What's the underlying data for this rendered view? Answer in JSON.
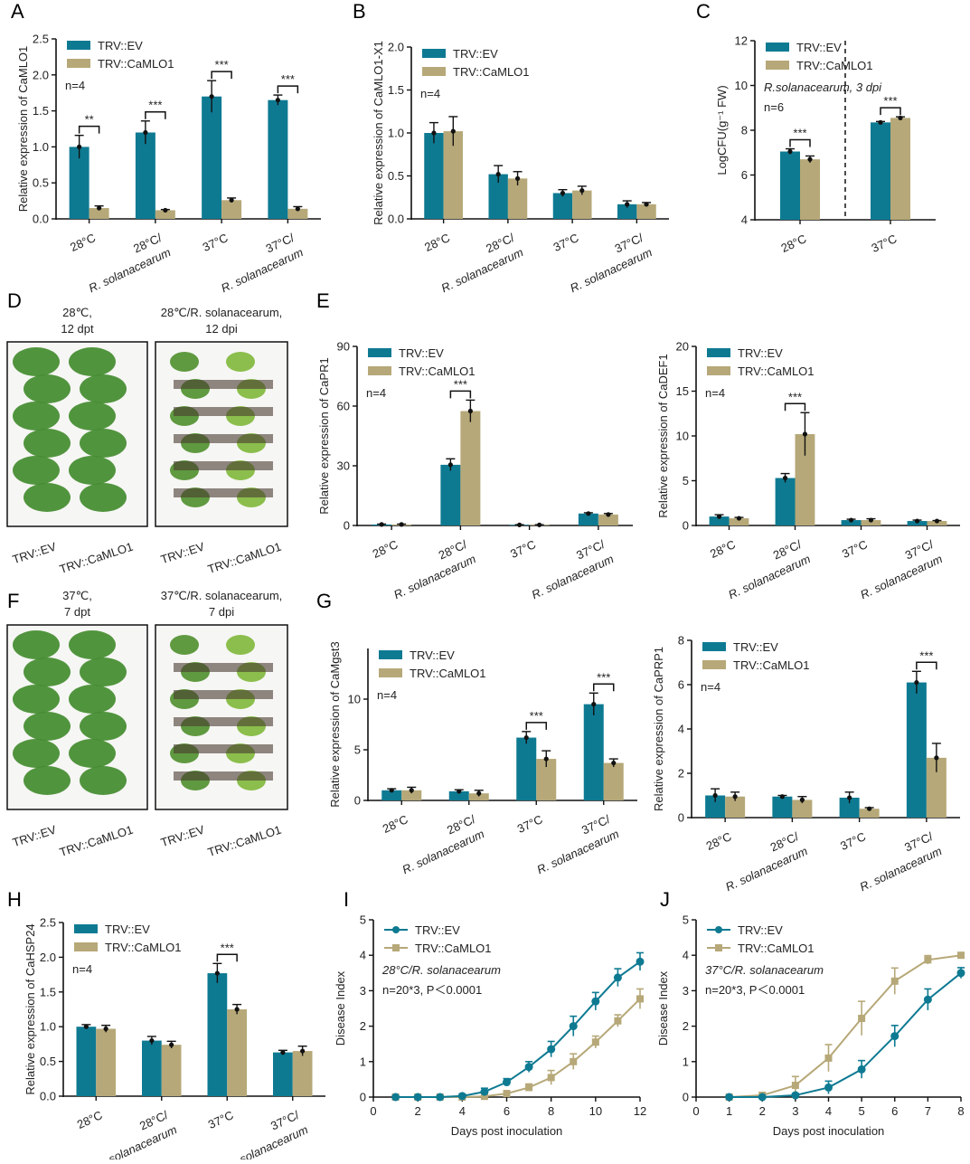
{
  "colors": {
    "ev": "#0e7a92",
    "mlo": "#b6a878",
    "axis": "#111"
  },
  "legend": {
    "ev": "TRV::EV",
    "mlo": "TRV::CaMLO1"
  },
  "panel_letters": [
    "A",
    "B",
    "C",
    "D",
    "E",
    "F",
    "G",
    "H",
    "I",
    "J"
  ],
  "photos": [
    {
      "letter": "D",
      "left_title": [
        "28℃,",
        "12 dpt"
      ],
      "right_title": [
        "28℃/R. solanacearum,",
        "12 dpi"
      ],
      "labels": [
        "TRV::EV",
        "TRV::CaMLO1",
        "TRV::EV",
        "TRV::CaMLO1"
      ]
    },
    {
      "letter": "F",
      "left_title": [
        "37℃,",
        "7 dpt"
      ],
      "right_title": [
        "37℃/R. solanacearum,",
        "7 dpi"
      ],
      "labels": [
        "TRV::EV",
        "TRV::CaMLO1",
        "TRV::EV",
        "TRV::CaMLO1"
      ]
    }
  ],
  "chart_data": [
    {
      "panel": "A",
      "type": "bar",
      "ylabel": "Relative expression of CaMLO1",
      "ylim": [
        0,
        2.5
      ],
      "yticks": [
        "0.0",
        "0.5",
        "1.0",
        "1.5",
        "2.0",
        "2.5"
      ],
      "notes": [
        "n=4"
      ],
      "categories": [
        [
          "28°C"
        ],
        [
          "28°C/",
          "R. solanacearum"
        ],
        [
          "37°C"
        ],
        [
          "37°C/",
          "R. solanacearum"
        ]
      ],
      "series": [
        {
          "name": "TRV::EV",
          "values": [
            1.0,
            1.2,
            1.7,
            1.65
          ],
          "errors": [
            0.16,
            0.16,
            0.22,
            0.07
          ]
        },
        {
          "name": "TRV::CaMLO1",
          "values": [
            0.15,
            0.12,
            0.26,
            0.14
          ],
          "errors": [
            0.03,
            0.01,
            0.03,
            0.03
          ]
        }
      ],
      "significance": [
        "**",
        "***",
        "***",
        "***"
      ]
    },
    {
      "panel": "B",
      "type": "bar",
      "ylabel": "Relative expression of CaMLO1-X1",
      "ylim": [
        0,
        2.0
      ],
      "yticks": [
        "0.0",
        "0.5",
        "1.0",
        "1.5",
        "2.0"
      ],
      "notes": [
        "n=4"
      ],
      "categories": [
        [
          "28°C"
        ],
        [
          "28°C/",
          "R. solanacearum"
        ],
        [
          "37°C"
        ],
        [
          "37°C/",
          "R. solanacearum"
        ]
      ],
      "series": [
        {
          "name": "TRV::EV",
          "values": [
            1.0,
            0.52,
            0.3,
            0.17
          ],
          "errors": [
            0.12,
            0.1,
            0.04,
            0.04
          ]
        },
        {
          "name": "TRV::CaMLO1",
          "values": [
            1.02,
            0.47,
            0.33,
            0.17
          ],
          "errors": [
            0.17,
            0.08,
            0.05,
            0.02
          ]
        }
      ],
      "significance": [
        "",
        "",
        "",
        ""
      ]
    },
    {
      "panel": "C",
      "type": "bar",
      "ylabel": "LogCFU(g⁻¹ FW)",
      "ylim": [
        4,
        12
      ],
      "yticks": [
        "4",
        "6",
        "8",
        "10",
        "12"
      ],
      "notes": [
        "R.solanacearum, 3 dpi",
        "n=6"
      ],
      "categories": [
        [
          "28°C"
        ],
        [
          "37°C"
        ]
      ],
      "series": [
        {
          "name": "TRV::EV",
          "values": [
            7.05,
            8.35
          ],
          "errors": [
            0.12,
            0.04
          ]
        },
        {
          "name": "TRV::CaMLO1",
          "values": [
            6.7,
            8.55
          ],
          "errors": [
            0.15,
            0.05
          ]
        }
      ],
      "significance": [
        "***",
        "***"
      ]
    },
    {
      "panel": "E",
      "type": "bar",
      "ylabel": "Relative expression of CaPR1",
      "ylim": [
        0,
        90
      ],
      "yticks": [
        "0",
        "30",
        "60",
        "90"
      ],
      "notes": [
        "n=4"
      ],
      "categories": [
        [
          "28°C"
        ],
        [
          "28°C/",
          "R. solanacearum"
        ],
        [
          "37°C"
        ],
        [
          "37°C/",
          "R. solanacearum"
        ]
      ],
      "series": [
        {
          "name": "TRV::EV",
          "values": [
            0.5,
            30.5,
            0.3,
            6
          ],
          "errors": [
            0.2,
            3,
            0.1,
            0.4
          ]
        },
        {
          "name": "TRV::CaMLO1",
          "values": [
            0.5,
            57.5,
            0.3,
            5.5
          ],
          "errors": [
            0.2,
            5.5,
            0.1,
            0.5
          ]
        }
      ],
      "significance": [
        "",
        "***",
        "",
        ""
      ]
    },
    {
      "panel": "E",
      "type": "bar",
      "ylabel": "Relative expression of CaDEF1",
      "ylim": [
        0,
        20
      ],
      "yticks": [
        "0",
        "5",
        "10",
        "15",
        "20"
      ],
      "notes": [
        "n=4"
      ],
      "categories": [
        [
          "28°C"
        ],
        [
          "28°C/",
          "R. solanacearum"
        ],
        [
          "37°C"
        ],
        [
          "37°C/",
          "R. solanacearum"
        ]
      ],
      "series": [
        {
          "name": "TRV::EV",
          "values": [
            1.0,
            5.3,
            0.6,
            0.5
          ],
          "errors": [
            0.2,
            0.5,
            0.1,
            0.1
          ]
        },
        {
          "name": "TRV::CaMLO1",
          "values": [
            0.8,
            10.2,
            0.6,
            0.5
          ],
          "errors": [
            0.1,
            2.4,
            0.15,
            0.05
          ]
        }
      ],
      "significance": [
        "",
        "***",
        "",
        ""
      ]
    },
    {
      "panel": "G",
      "type": "bar",
      "ylabel": "Relative expression of CaMgst3",
      "ylim": [
        0,
        15
      ],
      "yticks": [
        "0",
        "5",
        "10"
      ],
      "notes": [
        "n=4"
      ],
      "categories": [
        [
          "28°C"
        ],
        [
          "28°C/",
          "R. solanacearum"
        ],
        [
          "37°C"
        ],
        [
          "37°C/",
          "R. solanacearum"
        ]
      ],
      "series": [
        {
          "name": "TRV::EV",
          "values": [
            1.0,
            0.9,
            6.2,
            9.5
          ],
          "errors": [
            0.15,
            0.15,
            0.6,
            1.1
          ]
        },
        {
          "name": "TRV::CaMLO1",
          "values": [
            1.0,
            0.7,
            4.1,
            3.7
          ],
          "errors": [
            0.3,
            0.3,
            0.8,
            0.4
          ]
        }
      ],
      "significance": [
        "",
        "",
        "***",
        "***"
      ]
    },
    {
      "panel": "G",
      "type": "bar",
      "ylabel": "Relative expression of CaPRP1",
      "ylim": [
        0,
        8
      ],
      "yticks": [
        "0",
        "2",
        "4",
        "6",
        "8"
      ],
      "notes": [
        "n=4"
      ],
      "categories": [
        [
          "28°C"
        ],
        [
          "28°C/",
          "R. solanacearum"
        ],
        [
          "37°C"
        ],
        [
          "37°C/",
          "R. solanacearum"
        ]
      ],
      "series": [
        {
          "name": "TRV::EV",
          "values": [
            1.0,
            0.95,
            0.9,
            6.1
          ],
          "errors": [
            0.3,
            0.05,
            0.25,
            0.5
          ]
        },
        {
          "name": "TRV::CaMLO1",
          "values": [
            0.95,
            0.8,
            0.4,
            2.7
          ],
          "errors": [
            0.2,
            0.15,
            0.05,
            0.65
          ]
        }
      ],
      "significance": [
        "",
        "",
        "",
        "***"
      ]
    },
    {
      "panel": "H",
      "type": "bar",
      "ylabel": "Relative expression of CaHSP24",
      "ylim": [
        0,
        2.5
      ],
      "yticks": [
        "0.0",
        "0.5",
        "1.0",
        "1.5",
        "2.0",
        "2.5"
      ],
      "notes": [
        "n=4"
      ],
      "categories": [
        [
          "28°C"
        ],
        [
          "28°C/",
          "R. solanacearum"
        ],
        [
          "37°C"
        ],
        [
          "37°C/",
          "R. solanacearum"
        ]
      ],
      "series": [
        {
          "name": "TRV::EV",
          "values": [
            1.0,
            0.8,
            1.77,
            0.63
          ],
          "errors": [
            0.03,
            0.06,
            0.14,
            0.03
          ]
        },
        {
          "name": "TRV::CaMLO1",
          "values": [
            0.97,
            0.74,
            1.25,
            0.65
          ],
          "errors": [
            0.05,
            0.05,
            0.07,
            0.07
          ]
        }
      ],
      "significance": [
        "",
        "",
        "***",
        ""
      ]
    },
    {
      "panel": "I",
      "type": "line",
      "xlabel": "Days post inoculation",
      "ylabel": "Disease Index",
      "xlim": [
        0,
        12
      ],
      "ylim": [
        0,
        5
      ],
      "xticks": [
        "0",
        "2",
        "4",
        "6",
        "8",
        "10",
        "12"
      ],
      "yticks": [
        "0",
        "1",
        "2",
        "3",
        "4",
        "5"
      ],
      "notes": [
        "28°C/R. solanacearum",
        "n=20*3,  P＜0.0001"
      ],
      "x": [
        1,
        2,
        3,
        4,
        5,
        6,
        7,
        8,
        9,
        10,
        11,
        12
      ],
      "series": [
        {
          "name": "TRV::EV",
          "values": [
            0,
            0,
            0,
            0.03,
            0.15,
            0.42,
            0.85,
            1.35,
            2.0,
            2.7,
            3.37,
            3.82
          ],
          "errors": [
            0,
            0,
            0,
            0.05,
            0.1,
            0.1,
            0.15,
            0.22,
            0.28,
            0.25,
            0.25,
            0.25
          ]
        },
        {
          "name": "TRV::CaMLO1",
          "values": [
            0,
            0,
            0,
            0,
            0.02,
            0.1,
            0.27,
            0.55,
            1.0,
            1.55,
            2.15,
            2.77
          ],
          "errors": [
            0,
            0,
            0,
            0,
            0.05,
            0.05,
            0.1,
            0.2,
            0.22,
            0.17,
            0.17,
            0.28
          ]
        }
      ]
    },
    {
      "panel": "J",
      "type": "line",
      "xlabel": "Days post inoculation",
      "ylabel": "Disease Index",
      "xlim": [
        0,
        8
      ],
      "ylim": [
        0,
        5
      ],
      "xticks": [
        "0",
        "1",
        "2",
        "3",
        "4",
        "5",
        "6",
        "7",
        "8"
      ],
      "yticks": [
        "0",
        "1",
        "2",
        "3",
        "4",
        "5"
      ],
      "notes": [
        "37°C/R. solanacearum",
        "n=20*3,  P＜0.0001"
      ],
      "x": [
        1,
        2,
        3,
        4,
        5,
        6,
        7,
        8
      ],
      "series": [
        {
          "name": "TRV::EV",
          "values": [
            0,
            0,
            0.05,
            0.27,
            0.78,
            1.72,
            2.75,
            3.5
          ],
          "errors": [
            0,
            0,
            0.05,
            0.18,
            0.25,
            0.3,
            0.3,
            0.15
          ]
        },
        {
          "name": "TRV::CaMLO1",
          "values": [
            0,
            0.05,
            0.33,
            1.1,
            2.22,
            3.27,
            3.87,
            4.0
          ],
          "errors": [
            0,
            0.08,
            0.25,
            0.38,
            0.48,
            0.37,
            0.12,
            0.05
          ]
        }
      ]
    }
  ]
}
